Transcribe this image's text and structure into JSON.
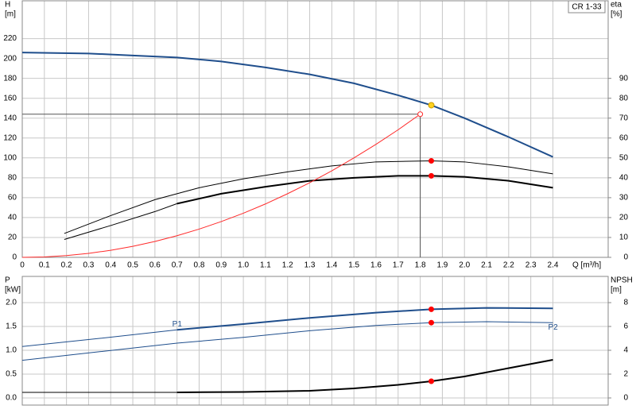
{
  "chart_data": [
    {
      "type": "line",
      "box_label": "CR 1-33",
      "ylabel": [
        "H",
        "[m]"
      ],
      "y2label": [
        "eta",
        "[%]"
      ],
      "xlabel": "Q [m³/h]",
      "xlim": [
        0,
        2.65
      ],
      "ylim": [
        0,
        258
      ],
      "y2lim": [
        0,
        129
      ],
      "grid": true,
      "xticks": [
        0,
        0.1,
        0.2,
        0.3,
        0.4,
        0.5,
        0.6,
        0.7,
        0.8,
        0.9,
        {
          "value": 1,
          "label": "1.0"
        },
        1.1,
        1.2,
        1.3,
        1.4,
        1.5,
        1.6,
        1.7,
        1.8,
        1.9,
        {
          "value": 2,
          "label": "2.0"
        },
        2.1,
        2.2,
        2.3,
        2.4
      ],
      "yticks": [
        0,
        20,
        40,
        60,
        80,
        100,
        120,
        140,
        160,
        180,
        200,
        220
      ],
      "y2ticks": [
        0,
        10,
        20,
        30,
        40,
        50,
        60,
        70,
        80,
        90
      ],
      "series": [
        {
          "color": "#1f4e8c",
          "width": 2,
          "x": [
            0,
            0.3,
            0.5,
            0.7,
            0.9,
            1.1,
            1.3,
            1.5,
            1.7,
            1.85,
            2.0,
            2.2,
            2.4
          ],
          "values": [
            206,
            205,
            203,
            201,
            197,
            191,
            184,
            175,
            163,
            153,
            140,
            121,
            101
          ]
        },
        {
          "color": "#000000",
          "width": 1,
          "axis": "y2",
          "x": [
            0.19,
            0.4,
            0.6,
            0.8,
            1.0,
            1.2,
            1.4,
            1.6,
            1.85,
            2.0,
            2.2,
            2.4
          ],
          "values": [
            12,
            21,
            29,
            35,
            39.5,
            43,
            46,
            48,
            48.5,
            48,
            45.5,
            42
          ]
        },
        {
          "color": "#000000",
          "width": 1,
          "axis": "y2",
          "x": [
            0.19,
            0.4,
            0.6,
            0.7
          ],
          "values": [
            9,
            16,
            23,
            27
          ]
        },
        {
          "color": "#000000",
          "width": 2,
          "axis": "y2",
          "x": [
            0.7,
            0.9,
            1.1,
            1.3,
            1.5,
            1.7,
            1.85,
            2.0,
            2.2,
            2.4
          ],
          "values": [
            27,
            32,
            35.5,
            38.5,
            40,
            41,
            41,
            40.5,
            38.5,
            35
          ]
        },
        {
          "color": "#ff2a2a",
          "width": 1,
          "x": [
            0,
            0.1,
            0.2,
            0.3,
            0.4,
            0.5,
            0.6,
            0.7,
            0.8,
            0.9,
            1.0,
            1.1,
            1.2,
            1.3,
            1.4,
            1.5,
            1.6,
            1.7,
            1.8
          ],
          "values": [
            0,
            0.4,
            1.8,
            4,
            7.1,
            11.1,
            16,
            21.8,
            28.4,
            36,
            44.4,
            53.7,
            64,
            75,
            87,
            100,
            113.7,
            128.3,
            144
          ]
        }
      ],
      "operating_point": {
        "x": 1.8,
        "y": 144
      },
      "points": [
        {
          "x": 1.85,
          "y": 153,
          "color": "#ffd21f"
        },
        {
          "x": 1.85,
          "y": 48.5,
          "axis": "y2",
          "color": "#ff0000"
        },
        {
          "x": 1.85,
          "y": 41,
          "axis": "y2",
          "color": "#ff0000"
        }
      ]
    },
    {
      "type": "line",
      "ylabel": [
        "P",
        "[kW]"
      ],
      "y2label": [
        "NPSH",
        "[m]"
      ],
      "xlim": [
        0,
        2.65
      ],
      "ylim": [
        -0.15,
        2.55
      ],
      "y2lim": [
        -0.6,
        10.2
      ],
      "grid": true,
      "xtick_labels": false,
      "xticks": [
        0,
        0.1,
        0.2,
        0.3,
        0.4,
        0.5,
        0.6,
        0.7,
        0.8,
        0.9,
        1,
        1.1,
        1.2,
        1.3,
        1.4,
        1.5,
        1.6,
        1.7,
        1.8,
        1.9,
        2,
        2.1,
        2.2,
        2.3,
        2.4
      ],
      "yticks": [
        {
          "value": 0,
          "label": "0.0"
        },
        0.5,
        {
          "value": 1,
          "label": "1.0"
        },
        1.5,
        {
          "value": 2,
          "label": "2.0"
        }
      ],
      "y2ticks": [
        0,
        2,
        4,
        6,
        8
      ],
      "series": [
        {
          "name": "P1",
          "color": "#1f4e8c",
          "width": 1,
          "x": [
            0,
            0.35,
            0.7
          ],
          "values": [
            1.08,
            1.25,
            1.43
          ]
        },
        {
          "color": "#1f4e8c",
          "width": 2,
          "x": [
            0.7,
            1.0,
            1.3,
            1.6,
            1.85,
            2.1,
            2.4
          ],
          "values": [
            1.43,
            1.55,
            1.68,
            1.79,
            1.86,
            1.89,
            1.88
          ]
        },
        {
          "name": "P2",
          "color": "#1f4e8c",
          "width": 1,
          "x": [
            0,
            0.35,
            0.7,
            1.0,
            1.3,
            1.6,
            1.85,
            2.1,
            2.4
          ],
          "values": [
            0.79,
            0.97,
            1.15,
            1.27,
            1.41,
            1.52,
            1.58,
            1.6,
            1.58
          ]
        },
        {
          "color": "#000000",
          "width": 1,
          "axis": "y2",
          "x": [
            0,
            0.7
          ],
          "values": [
            0.47,
            0.47
          ]
        },
        {
          "color": "#000000",
          "width": 2,
          "axis": "y2",
          "x": [
            0.7,
            1.0,
            1.3,
            1.5,
            1.7,
            1.85,
            2.0,
            2.2,
            2.4
          ],
          "values": [
            0.47,
            0.5,
            0.6,
            0.8,
            1.1,
            1.4,
            1.8,
            2.5,
            3.2
          ]
        }
      ],
      "points": [
        {
          "x": 1.85,
          "y": 1.86,
          "color": "#ff0000"
        },
        {
          "x": 1.85,
          "y": 1.58,
          "color": "#ff0000"
        },
        {
          "x": 1.85,
          "y": 1.4,
          "axis": "y2",
          "color": "#ff0000"
        }
      ]
    }
  ]
}
